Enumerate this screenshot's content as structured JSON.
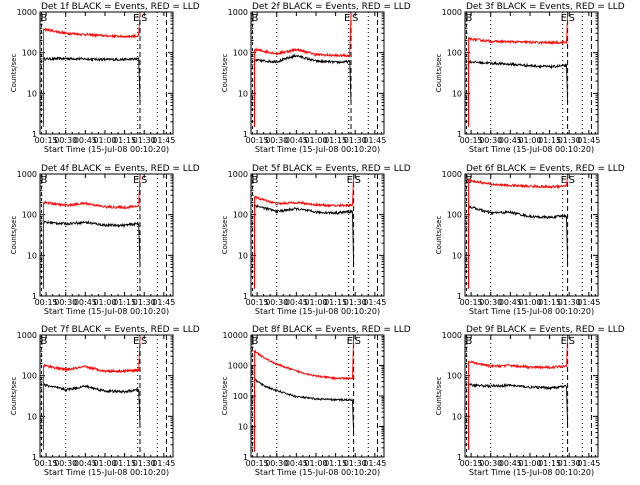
{
  "colors": {
    "events": "#000000",
    "lld": "#ff0000",
    "background": "#ffffff",
    "axes": "#000000"
  },
  "chart_data": [
    {
      "type": "line",
      "title": "Det 1f BLACK = Events, RED = LLD",
      "xlabel": "Start Time (15-Jul-08 00:10:20)",
      "ylabel": "Counts/sec",
      "yscale": "log",
      "ylim": [
        1,
        1000
      ],
      "xlim": [
        "00:10:20",
        "01:52:00"
      ],
      "yticks": [
        "1",
        "10",
        "100",
        "1000"
      ],
      "xticks": [
        "00:15",
        "00:30",
        "00:45",
        "01:00",
        "01:15",
        "01:30",
        "01:45"
      ],
      "markers": [
        "B",
        "E",
        "S"
      ],
      "series": [
        {
          "name": "Events",
          "color": "#000000",
          "points": [
            [
              "00:13",
              70
            ],
            [
              "00:30",
              72
            ],
            [
              "00:45",
              70
            ],
            [
              "01:00",
              68
            ],
            [
              "01:15",
              68
            ],
            [
              "01:26",
              70
            ]
          ]
        },
        {
          "name": "LLD",
          "color": "#ff0000",
          "points": [
            [
              "00:13",
              380
            ],
            [
              "00:30",
              300
            ],
            [
              "00:45",
              280
            ],
            [
              "01:00",
              260
            ],
            [
              "01:15",
              250
            ],
            [
              "01:26",
              260
            ]
          ]
        }
      ]
    },
    {
      "type": "line",
      "title": "Det 2f BLACK = Events, RED = LLD",
      "xlabel": "Start Time (15-Jul-08 00:10:20)",
      "ylabel": "Counts/sec",
      "yscale": "log",
      "ylim": [
        1,
        1000
      ],
      "xlim": [
        "00:10:20",
        "01:52:00"
      ],
      "yticks": [
        "1",
        "10",
        "100",
        "1000"
      ],
      "xticks": [
        "00:15",
        "00:30",
        "00:45",
        "01:00",
        "01:15",
        "01:30",
        "01:45"
      ],
      "markers": [
        "B",
        "E",
        "S"
      ],
      "series": [
        {
          "name": "Events",
          "color": "#000000",
          "points": [
            [
              "00:13",
              65
            ],
            [
              "00:30",
              60
            ],
            [
              "00:45",
              85
            ],
            [
              "01:00",
              62
            ],
            [
              "01:15",
              58
            ],
            [
              "01:26",
              60
            ]
          ]
        },
        {
          "name": "LLD",
          "color": "#ff0000",
          "points": [
            [
              "00:13",
              120
            ],
            [
              "00:30",
              95
            ],
            [
              "00:45",
              120
            ],
            [
              "01:00",
              90
            ],
            [
              "01:15",
              85
            ],
            [
              "01:26",
              85
            ]
          ]
        }
      ]
    },
    {
      "type": "line",
      "title": "Det 3f BLACK = Events, RED = LLD",
      "xlabel": "Start Time (15-Jul-08 00:10:20)",
      "ylabel": "Counts/sec",
      "yscale": "log",
      "ylim": [
        1,
        1000
      ],
      "xlim": [
        "00:10:20",
        "01:52:00"
      ],
      "yticks": [
        "1",
        "10",
        "100",
        "1000"
      ],
      "xticks": [
        "00:15",
        "00:30",
        "00:45",
        "01:00",
        "01:15",
        "01:30",
        "01:45"
      ],
      "markers": [
        "B",
        "E",
        "S"
      ],
      "series": [
        {
          "name": "Events",
          "color": "#000000",
          "points": [
            [
              "00:13",
              60
            ],
            [
              "00:30",
              55
            ],
            [
              "00:45",
              52
            ],
            [
              "01:00",
              48
            ],
            [
              "01:15",
              45
            ],
            [
              "01:28",
              48
            ]
          ]
        },
        {
          "name": "LLD",
          "color": "#ff0000",
          "points": [
            [
              "00:13",
              220
            ],
            [
              "00:30",
              190
            ],
            [
              "00:45",
              185
            ],
            [
              "01:00",
              180
            ],
            [
              "01:15",
              175
            ],
            [
              "01:28",
              180
            ]
          ]
        }
      ]
    },
    {
      "type": "line",
      "title": "Det 4f BLACK = Events, RED = LLD",
      "xlabel": "Start Time (15-Jul-08 00:10:20)",
      "ylabel": "Counts/sec",
      "yscale": "log",
      "ylim": [
        1,
        1000
      ],
      "xlim": [
        "00:10:20",
        "01:52:00"
      ],
      "yticks": [
        "1",
        "10",
        "100",
        "1000"
      ],
      "xticks": [
        "00:15",
        "00:30",
        "00:45",
        "01:00",
        "01:15",
        "01:30",
        "01:45"
      ],
      "markers": [
        "B",
        "E",
        "S"
      ],
      "series": [
        {
          "name": "Events",
          "color": "#000000",
          "points": [
            [
              "00:13",
              65
            ],
            [
              "00:30",
              60
            ],
            [
              "00:45",
              65
            ],
            [
              "01:00",
              55
            ],
            [
              "01:15",
              55
            ],
            [
              "01:26",
              60
            ]
          ]
        },
        {
          "name": "LLD",
          "color": "#ff0000",
          "points": [
            [
              "00:13",
              200
            ],
            [
              "00:30",
              170
            ],
            [
              "00:45",
              190
            ],
            [
              "01:00",
              155
            ],
            [
              "01:15",
              150
            ],
            [
              "01:26",
              165
            ]
          ]
        }
      ]
    },
    {
      "type": "line",
      "title": "Det 5f BLACK = Events, RED = LLD",
      "xlabel": "Start Time (15-Jul-08 00:10:20)",
      "ylabel": "Counts/sec",
      "yscale": "log",
      "ylim": [
        1,
        1000
      ],
      "xlim": [
        "00:10:20",
        "01:52:00"
      ],
      "yticks": [
        "1",
        "10",
        "100",
        "1000"
      ],
      "xticks": [
        "00:15",
        "00:30",
        "00:45",
        "01:00",
        "01:15",
        "01:30",
        "01:45"
      ],
      "markers": [
        "B",
        "E",
        "S"
      ],
      "series": [
        {
          "name": "Events",
          "color": "#000000",
          "points": [
            [
              "00:13",
              170
            ],
            [
              "00:30",
              120
            ],
            [
              "00:45",
              140
            ],
            [
              "01:00",
              115
            ],
            [
              "01:15",
              110
            ],
            [
              "01:28",
              120
            ]
          ]
        },
        {
          "name": "LLD",
          "color": "#ff0000",
          "points": [
            [
              "00:13",
              270
            ],
            [
              "00:30",
              185
            ],
            [
              "00:45",
              200
            ],
            [
              "01:00",
              175
            ],
            [
              "01:15",
              165
            ],
            [
              "01:28",
              175
            ]
          ]
        }
      ]
    },
    {
      "type": "line",
      "title": "Det 6f BLACK = Events, RED = LLD",
      "xlabel": "Start Time (15-Jul-08 00:10:20)",
      "ylabel": "Counts/sec",
      "yscale": "log",
      "ylim": [
        1,
        1000
      ],
      "xlim": [
        "00:10:20",
        "01:52:00"
      ],
      "yticks": [
        "1",
        "10",
        "100",
        "1000"
      ],
      "xticks": [
        "00:15",
        "00:30",
        "00:45",
        "01:00",
        "01:15",
        "01:30",
        "01:45"
      ],
      "markers": [
        "B",
        "E",
        "S"
      ],
      "series": [
        {
          "name": "Events",
          "color": "#000000",
          "points": [
            [
              "00:13",
              160
            ],
            [
              "00:30",
              110
            ],
            [
              "00:45",
              115
            ],
            [
              "01:00",
              90
            ],
            [
              "01:15",
              85
            ],
            [
              "01:28",
              95
            ]
          ]
        },
        {
          "name": "LLD",
          "color": "#ff0000",
          "points": [
            [
              "00:13",
              700
            ],
            [
              "00:30",
              560
            ],
            [
              "00:45",
              520
            ],
            [
              "01:00",
              500
            ],
            [
              "01:15",
              480
            ],
            [
              "01:28",
              520
            ]
          ]
        }
      ]
    },
    {
      "type": "line",
      "title": "Det 7f BLACK = Events, RED = LLD",
      "xlabel": "Start Time (15-Jul-08 00:10:20)",
      "ylabel": "Counts/sec",
      "yscale": "log",
      "ylim": [
        1,
        1000
      ],
      "xlim": [
        "00:10:20",
        "01:52:00"
      ],
      "yticks": [
        "1",
        "10",
        "100",
        "1000"
      ],
      "xticks": [
        "00:15",
        "00:30",
        "00:45",
        "01:00",
        "01:15",
        "01:30",
        "01:45"
      ],
      "markers": [
        "B",
        "E",
        "S"
      ],
      "series": [
        {
          "name": "Events",
          "color": "#000000",
          "points": [
            [
              "00:13",
              60
            ],
            [
              "00:30",
              45
            ],
            [
              "00:45",
              55
            ],
            [
              "01:00",
              42
            ],
            [
              "01:15",
              40
            ],
            [
              "01:26",
              45
            ]
          ]
        },
        {
          "name": "LLD",
          "color": "#ff0000",
          "points": [
            [
              "00:13",
              180
            ],
            [
              "00:30",
              140
            ],
            [
              "00:45",
              165
            ],
            [
              "01:00",
              130
            ],
            [
              "01:15",
              130
            ],
            [
              "01:26",
              140
            ]
          ]
        }
      ]
    },
    {
      "type": "line",
      "title": "Det 8f BLACK = Events, RED = LLD",
      "xlabel": "Start Time (15-Jul-08 00:10:20)",
      "ylabel": "Counts/sec",
      "yscale": "log",
      "ylim": [
        1,
        10000
      ],
      "xlim": [
        "00:10:20",
        "01:52:00"
      ],
      "yticks": [
        "1",
        "10",
        "100",
        "1000",
        "10000"
      ],
      "xticks": [
        "00:15",
        "00:30",
        "00:45",
        "01:00",
        "01:15",
        "01:30",
        "01:45"
      ],
      "markers": [
        "B",
        "E",
        "S"
      ],
      "series": [
        {
          "name": "Events",
          "color": "#000000",
          "points": [
            [
              "00:13",
              350
            ],
            [
              "00:20",
              220
            ],
            [
              "00:30",
              150
            ],
            [
              "00:45",
              95
            ],
            [
              "01:00",
              80
            ],
            [
              "01:15",
              75
            ],
            [
              "01:28",
              75
            ]
          ]
        },
        {
          "name": "LLD",
          "color": "#ff0000",
          "points": [
            [
              "00:13",
              3000
            ],
            [
              "00:20",
              1800
            ],
            [
              "00:30",
              1100
            ],
            [
              "00:45",
              650
            ],
            [
              "01:00",
              450
            ],
            [
              "01:15",
              380
            ],
            [
              "01:28",
              380
            ]
          ]
        }
      ]
    },
    {
      "type": "line",
      "title": "Det 9f BLACK = Events, RED = LLD",
      "xlabel": "Start Time (15-Jul-08 00:10:20)",
      "ylabel": "Counts/sec",
      "yscale": "log",
      "ylim": [
        1,
        1000
      ],
      "xlim": [
        "00:10:20",
        "01:52:00"
      ],
      "yticks": [
        "1",
        "10",
        "100",
        "1000"
      ],
      "xticks": [
        "00:15",
        "00:30",
        "00:45",
        "01:00",
        "01:15",
        "01:30",
        "01:45"
      ],
      "markers": [
        "B",
        "E",
        "S"
      ],
      "series": [
        {
          "name": "Events",
          "color": "#000000",
          "points": [
            [
              "00:13",
              60
            ],
            [
              "00:30",
              55
            ],
            [
              "00:45",
              58
            ],
            [
              "01:00",
              52
            ],
            [
              "01:15",
              50
            ],
            [
              "01:28",
              55
            ]
          ]
        },
        {
          "name": "LLD",
          "color": "#ff0000",
          "points": [
            [
              "00:13",
              220
            ],
            [
              "00:30",
              170
            ],
            [
              "00:45",
              180
            ],
            [
              "01:00",
              160
            ],
            [
              "01:15",
              160
            ],
            [
              "01:28",
              175
            ]
          ]
        }
      ]
    }
  ]
}
